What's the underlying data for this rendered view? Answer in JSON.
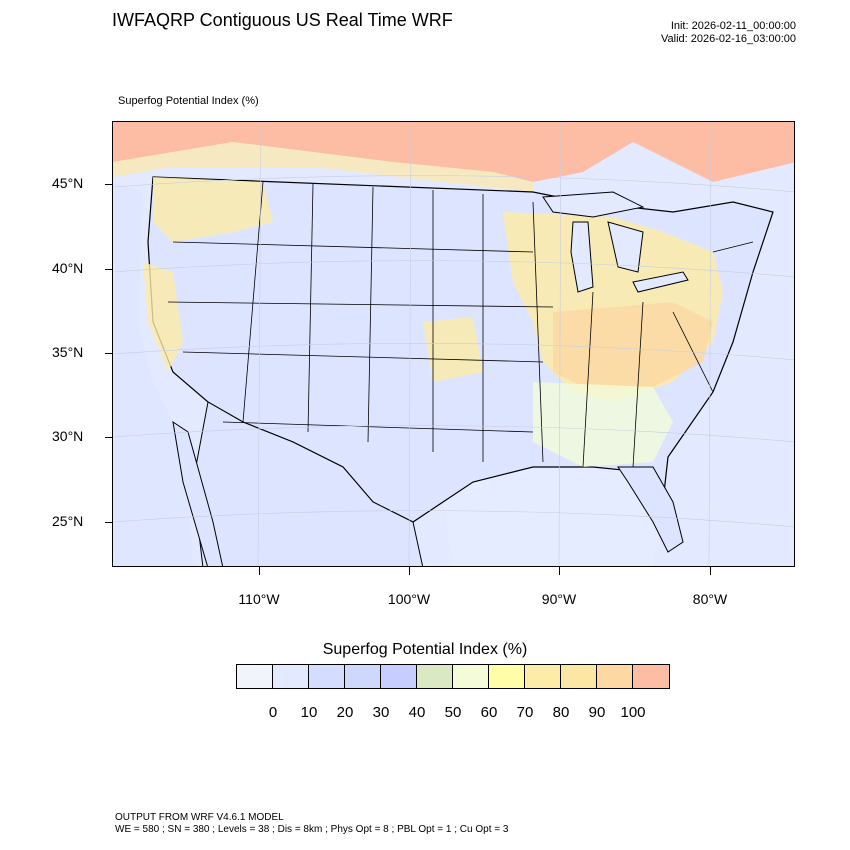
{
  "header": {
    "title": "IWFAQRP Contiguous US Real Time WRF",
    "init": "Init: 2026-02-11_00:00:00",
    "valid": "Valid: 2026-02-16_03:00:00"
  },
  "map": {
    "field_label": "Superfog Potential Index   (%)",
    "background_color": "#e3e9ff",
    "lat_labels": [
      "45°N",
      "40°N",
      "35°N",
      "30°N",
      "25°N"
    ],
    "lon_labels": [
      "110°W",
      "100°W",
      "90°W",
      "80°W"
    ]
  },
  "colorbar": {
    "title": "Superfog Potential Index  (%)",
    "colors": [
      "#f1f4fa",
      "#e3e9ff",
      "#d4ddff",
      "#cdd8fc",
      "#c7ceff",
      "#dbe8c4",
      "#f3fbd9",
      "#fffda8",
      "#fdeba8",
      "#fbe7a3",
      "#fdd8a2",
      "#fdbca4"
    ],
    "labels": [
      "0",
      "10",
      "20",
      "30",
      "40",
      "50",
      "60",
      "70",
      "80",
      "90",
      "100"
    ]
  },
  "footer": {
    "line1": "OUTPUT FROM WRF V4.6.1 MODEL",
    "line2": "WE = 580 ; SN = 380 ; Levels = 38 ; Dis = 8km ; Phys Opt = 8 ; PBL Opt = 1 ; Cu Opt = 3"
  }
}
